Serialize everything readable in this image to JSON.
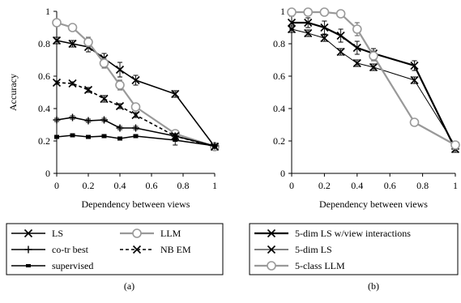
{
  "chart_data": [
    {
      "type": "line",
      "panel_label": "(a)",
      "xlabel": "Dependency between views",
      "ylabel": "Accuracy",
      "xlim": [
        0,
        1
      ],
      "ylim": [
        0,
        1
      ],
      "xticks": [
        "0",
        "0.2",
        "0.4",
        "0.6",
        "0.8",
        "1"
      ],
      "yticks": [
        "0",
        "0.2",
        "0.4",
        "0.6",
        "0.8",
        "1"
      ],
      "grid": false,
      "legend_position": "bottom",
      "series": [
        {
          "name": "LS",
          "color": "#000000",
          "marker": "x",
          "dash": "solid",
          "x": [
            0,
            0.1,
            0.2,
            0.3,
            0.4,
            0.5,
            0.75,
            1
          ],
          "y": [
            0.82,
            0.8,
            0.78,
            0.71,
            0.64,
            0.575,
            0.49,
            0.165
          ],
          "err": [
            0.02,
            0.02,
            0.03,
            0.03,
            0.045,
            0.03,
            0.02,
            0.02
          ]
        },
        {
          "name": "LLM",
          "color": "#999999",
          "marker": "o",
          "dash": "solid",
          "x": [
            0,
            0.1,
            0.2,
            0.3,
            0.4,
            0.5,
            0.75,
            1
          ],
          "y": [
            0.93,
            0.9,
            0.81,
            0.68,
            0.545,
            0.41,
            0.245,
            0.165
          ],
          "err": [
            0.02,
            0.02,
            0.03,
            0.03,
            0.03,
            0.02,
            0.02,
            0.02
          ]
        },
        {
          "name": "co-tr best",
          "color": "#000000",
          "marker": "+",
          "dash": "solid",
          "x": [
            0,
            0.1,
            0.2,
            0.3,
            0.4,
            0.5,
            0.75,
            1
          ],
          "y": [
            0.33,
            0.345,
            0.325,
            0.33,
            0.28,
            0.28,
            0.23,
            0.17
          ],
          "err": [
            0.01,
            0.01,
            0.01,
            0.01,
            0.01,
            0.01,
            0.01,
            0.01
          ]
        },
        {
          "name": "NB EM",
          "color": "#000000",
          "marker": "x",
          "dash": "dash",
          "x": [
            0,
            0.1,
            0.2,
            0.3,
            0.4,
            0.5,
            0.75,
            1
          ],
          "y": [
            0.56,
            0.555,
            0.515,
            0.46,
            0.415,
            0.36,
            0.23,
            0.165
          ],
          "err": [
            0.01,
            0.01,
            0.015,
            0.02,
            0.015,
            0.015,
            0.015,
            0.01
          ]
        },
        {
          "name": "supervised",
          "color": "#000000",
          "marker": "dash",
          "dash": "solid",
          "x": [
            0,
            0.1,
            0.2,
            0.3,
            0.4,
            0.5,
            0.75,
            1
          ],
          "y": [
            0.225,
            0.235,
            0.225,
            0.23,
            0.215,
            0.23,
            0.205,
            0.17
          ],
          "err": [
            0.01,
            0.01,
            0.01,
            0.01,
            0.01,
            0.01,
            0.03,
            0.01
          ]
        }
      ]
    },
    {
      "type": "line",
      "panel_label": "(b)",
      "xlabel": "Dependency between views",
      "ylabel": "",
      "xlim": [
        0,
        1
      ],
      "ylim": [
        0,
        1
      ],
      "xticks": [
        "0",
        "0.2",
        "0.4",
        "0.6",
        "0.8",
        "1"
      ],
      "yticks": [
        "0",
        "0.2",
        "0.4",
        "0.6",
        "0.8",
        "1"
      ],
      "grid": false,
      "legend_position": "bottom",
      "series": [
        {
          "name": "5-dim LS w/view interactions",
          "color": "#000000",
          "marker": "x",
          "width": 2.2,
          "dash": "solid",
          "x": [
            0,
            0.1,
            0.2,
            0.3,
            0.4,
            0.5,
            0.75,
            1
          ],
          "y": [
            0.93,
            0.93,
            0.9,
            0.85,
            0.775,
            0.74,
            0.665,
            0.15
          ],
          "err": [
            0.04,
            0.03,
            0.04,
            0.04,
            0.04,
            0.03,
            0.03,
            0.02
          ]
        },
        {
          "name": "5-dim LS",
          "color": "#000000",
          "marker": "x",
          "width": 1,
          "dash": "solid",
          "x": [
            0,
            0.1,
            0.2,
            0.3,
            0.4,
            0.5,
            0.75,
            1
          ],
          "y": [
            0.89,
            0.865,
            0.835,
            0.75,
            0.68,
            0.655,
            0.575,
            0.17
          ],
          "err": [
            0.02,
            0.02,
            0.02,
            0.02,
            0.02,
            0.02,
            0.02,
            0.02
          ]
        },
        {
          "name": "5-class LLM",
          "color": "#999999",
          "marker": "o",
          "width": 2.2,
          "dash": "solid",
          "x": [
            0,
            0.1,
            0.2,
            0.3,
            0.4,
            0.5,
            0.75,
            1
          ],
          "y": [
            0.995,
            0.995,
            0.995,
            0.985,
            0.89,
            0.725,
            0.315,
            0.175
          ],
          "err": [
            0.01,
            0.01,
            0.01,
            0.01,
            0.04,
            0.03,
            0.02,
            0.02
          ]
        }
      ]
    }
  ]
}
